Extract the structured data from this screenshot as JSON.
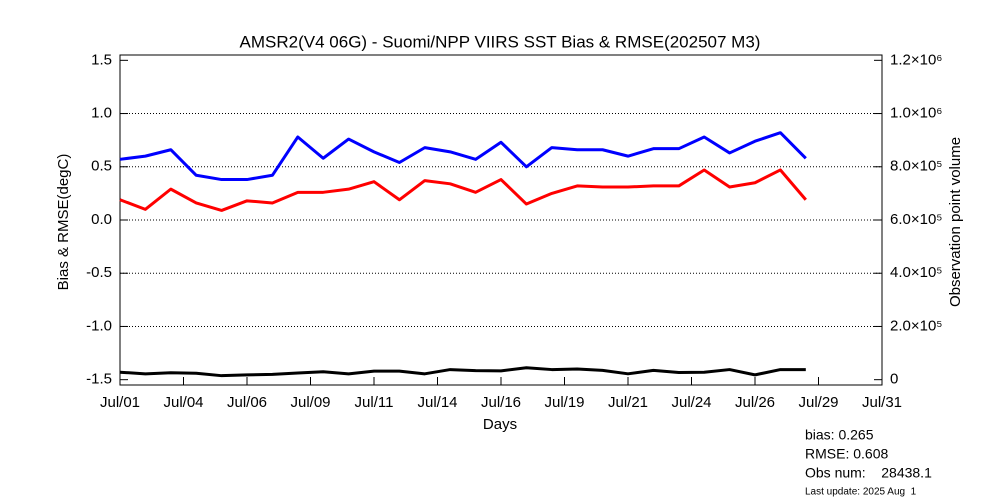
{
  "chart_data": {
    "type": "line",
    "title": "AMSR2(V4 06G) - Suomi/NPP VIIRS SST Bias & RMSE(202507 M3)",
    "xlabel": "Days",
    "ylabel": "Bias & RMSE(degC)",
    "y2label": "Observation point volume",
    "x": [
      1,
      2,
      3,
      4,
      5,
      6,
      7,
      8,
      9,
      10,
      11,
      12,
      13,
      14,
      15,
      16,
      17,
      18,
      19,
      20,
      21,
      22,
      23,
      24,
      25,
      26,
      27,
      28
    ],
    "xlim": [
      1,
      31
    ],
    "xticks": [
      {
        "value": 1,
        "label": "Jul/01"
      },
      {
        "value": 3.5,
        "label": "Jul/04"
      },
      {
        "value": 6,
        "label": "Jul/06"
      },
      {
        "value": 8.5,
        "label": "Jul/09"
      },
      {
        "value": 11,
        "label": "Jul/11"
      },
      {
        "value": 13.5,
        "label": "Jul/14"
      },
      {
        "value": 16,
        "label": "Jul/16"
      },
      {
        "value": 18.5,
        "label": "Jul/19"
      },
      {
        "value": 21,
        "label": "Jul/21"
      },
      {
        "value": 23.5,
        "label": "Jul/24"
      },
      {
        "value": 26,
        "label": "Jul/26"
      },
      {
        "value": 28.5,
        "label": "Jul/29"
      },
      {
        "value": 31,
        "label": "Jul/31"
      }
    ],
    "ylim": [
      -1.55,
      1.55
    ],
    "yticks": [
      {
        "value": 1.5,
        "label": "1.5"
      },
      {
        "value": 1.0,
        "label": "1.0"
      },
      {
        "value": 0.5,
        "label": "0.5"
      },
      {
        "value": 0.0,
        "label": "0.0"
      },
      {
        "value": -0.5,
        "label": "-0.5"
      },
      {
        "value": -1.0,
        "label": "-1.0"
      },
      {
        "value": -1.5,
        "label": "-1.5"
      }
    ],
    "y2lim": [
      -20000,
      1220000
    ],
    "y2ticks": [
      0,
      {
        "value": 200000,
        "label": "2.0×10⁵"
      },
      {
        "value": 400000,
        "label": "4.0×10⁵"
      },
      {
        "value": 600000,
        "label": "6.0×10⁵"
      },
      {
        "value": 800000,
        "label": "8.0×10⁵"
      },
      {
        "value": 1000000,
        "label": "1.0×10⁶"
      },
      {
        "value": 1200000,
        "label": "1.2×10⁶"
      }
    ],
    "grid": true,
    "series": [
      {
        "color": "#ff0000",
        "values": [
          0.19,
          0.1,
          0.29,
          0.16,
          0.09,
          0.18,
          0.16,
          0.26,
          0.26,
          0.29,
          0.36,
          0.19,
          0.37,
          0.34,
          0.26,
          0.38,
          0.15,
          0.25,
          0.32,
          0.31,
          0.31,
          0.32,
          0.32,
          0.47,
          0.31,
          0.35,
          0.47,
          0.19
        ]
      },
      {
        "color": "#0000ff",
        "values": [
          0.57,
          0.6,
          0.66,
          0.42,
          0.38,
          0.38,
          0.42,
          0.78,
          0.58,
          0.76,
          0.64,
          0.54,
          0.68,
          0.64,
          0.57,
          0.73,
          0.5,
          0.68,
          0.66,
          0.66,
          0.6,
          0.67,
          0.67,
          0.78,
          0.63,
          0.74,
          0.82,
          0.58
        ]
      },
      {
        "color": "#000000",
        "axis": "y2",
        "values": [
          28000,
          22000,
          26000,
          24000,
          15000,
          18000,
          20000,
          25000,
          30000,
          22000,
          32000,
          32000,
          22000,
          38000,
          34000,
          33000,
          45000,
          38000,
          40000,
          35000,
          22000,
          35000,
          27000,
          28000,
          38000,
          18000,
          38000,
          38000
        ]
      }
    ],
    "annotations": [
      {
        "text": "bias: 0.265",
        "color": "#ff0000"
      },
      {
        "text": "RMSE: 0.608",
        "color": "#0000ff"
      },
      {
        "text": "Obs num:    28438.1",
        "color": "#000000"
      },
      {
        "text": "Last update: 2025 Aug  1",
        "color": "#000000"
      }
    ]
  }
}
